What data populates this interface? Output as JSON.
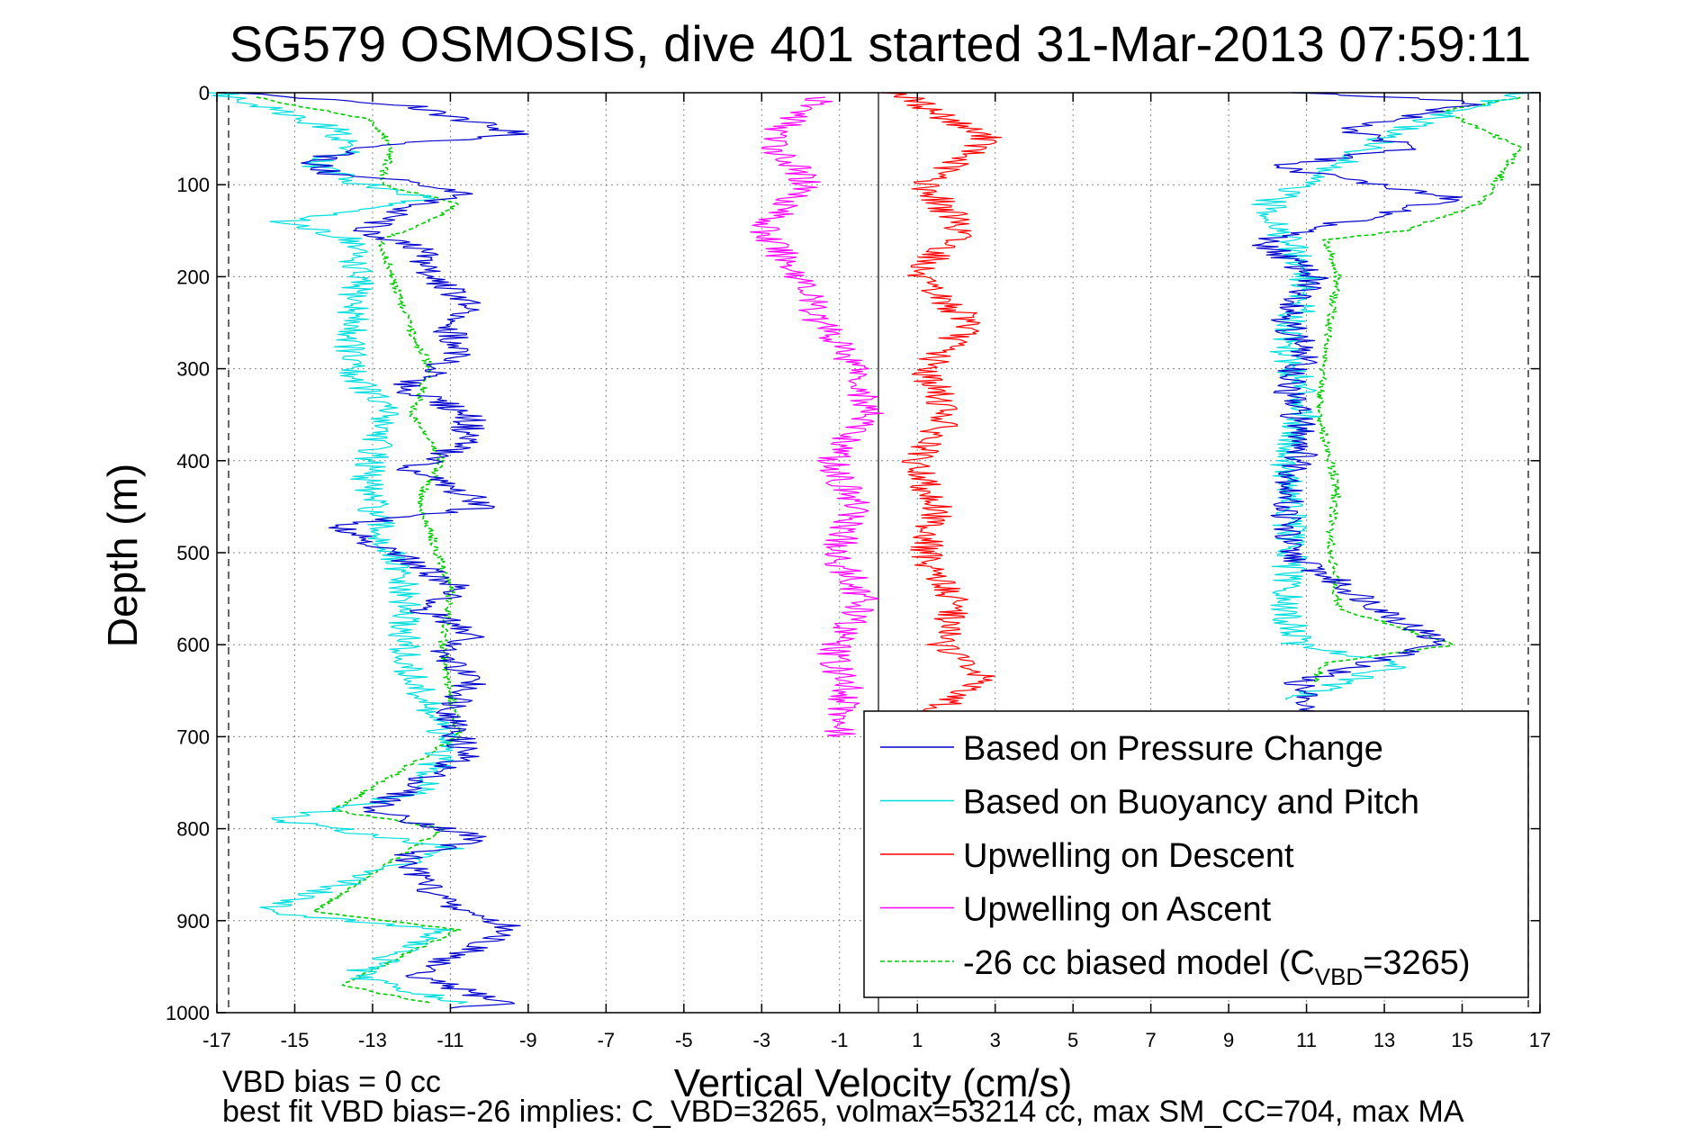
{
  "chart_data": {
    "type": "line",
    "title": "SG579 OSMOSIS, dive 401 started 31-Mar-2013 07:59:11",
    "xlabel": "Vertical Velocity (cm/s)",
    "ylabel": "Depth (m)",
    "xlim": [
      -17,
      17
    ],
    "ylim": [
      0,
      1000
    ],
    "y_reversed": true,
    "xticks": [
      "-17",
      "-15",
      "-13",
      "-11",
      "-9",
      "-7",
      "-5",
      "-3",
      "-1",
      "1",
      "3",
      "5",
      "7",
      "9",
      "11",
      "13",
      "15",
      "17"
    ],
    "yticks": [
      "0",
      "100",
      "200",
      "300",
      "400",
      "500",
      "600",
      "700",
      "800",
      "900",
      "1000"
    ],
    "grid": true,
    "legend_position": "bottom-right",
    "reference_lines": [
      {
        "x": -16.7,
        "style": "dashed"
      },
      {
        "x": 0,
        "style": "solid"
      },
      {
        "x": 16.7,
        "style": "dashed"
      }
    ],
    "series": [
      {
        "name": "Based on Pressure Change",
        "color": "#0000cc",
        "segments": [
          {
            "x": [
              -16.5,
              -12,
              -9.2,
              -13.5,
              -14.5,
              -14.2,
              -12.5,
              -10.5,
              -12.2,
              -13.2,
              -11.8,
              -11.5,
              -10.5,
              -11,
              -10.8,
              -11.3,
              -12.3,
              -10.5,
              -10.6,
              -12,
              -10,
              -13.8,
              -12.5,
              -10.7,
              -11.8,
              -10.3,
              -11.2,
              -10.5,
              -11,
              -10.6,
              -13,
              -10.2,
              -12.2,
              -11.2,
              -9.3,
              -11,
              -12,
              -9.5,
              -11
            ],
            "y": [
              0,
              15,
              45,
              60,
              75,
              88,
              95,
              110,
              125,
              150,
              170,
              200,
              230,
              260,
              280,
              300,
              320,
              350,
              380,
              410,
              450,
              470,
              500,
              540,
              560,
              590,
              610,
              640,
              680,
              720,
              780,
              810,
              830,
              880,
              910,
              940,
              960,
              990,
              995
            ]
          },
          {
            "x": [
              10.8,
              15.5,
              12,
              13.8,
              10.2,
              14.8,
              9.8,
              11.2,
              10.5,
              11,
              10.5,
              11,
              10.5,
              10.5,
              14.5,
              10.8,
              11,
              10.8
            ],
            "y": [
              0,
              10,
              40,
              60,
              80,
              115,
              160,
              200,
              250,
              280,
              320,
              380,
              440,
              500,
              600,
              640,
              660,
              675
            ]
          }
        ]
      },
      {
        "name": "Based on Buoyancy and Pitch",
        "color": "#00dddd",
        "segments": [
          {
            "x": [
              -17,
              -15.8,
              -14,
              -13.5,
              -14.5,
              -13.2,
              -11.5,
              -15.2,
              -13.5,
              -13.4,
              -13.6,
              -12.6,
              -13.2,
              -12.8,
              -12.2,
              -12.2,
              -11.2,
              -11.6,
              -15.5,
              -11,
              -15.8,
              -11.2,
              -13.5,
              -10.8
            ],
            "y": [
              0,
              15,
              40,
              60,
              80,
              100,
              115,
              140,
              160,
              200,
              300,
              350,
              420,
              480,
              540,
              620,
              700,
              760,
              790,
              820,
              890,
              910,
              960,
              990
            ]
          },
          {
            "x": [
              16.5,
              14,
              12.5,
              10,
              11,
              10.5,
              11,
              10.5,
              10.6,
              10.4,
              10.8,
              13.5,
              10.5
            ],
            "y": [
              0,
              30,
              60,
              120,
              200,
              280,
              340,
              400,
              500,
              560,
              600,
              620,
              660
            ]
          }
        ]
      },
      {
        "name": "Upwelling on Descent",
        "color": "#ff0000",
        "segments": [
          {
            "x": [
              0.5,
              2.8,
              1.2,
              2.2,
              0.9,
              2.4,
              1.2,
              1.8,
              0.9,
              1.5,
              1.2,
              2,
              1.6,
              2.8,
              1.4,
              2
            ],
            "y": [
              0,
              50,
              100,
              150,
              200,
              250,
              300,
              350,
              400,
              450,
              500,
              560,
              600,
              640,
              670,
              690
            ]
          }
        ]
      },
      {
        "name": "Upwelling on Ascent",
        "color": "#ff00ff",
        "segments": [
          {
            "x": [
              -1.5,
              -2.8,
              -1.8,
              -3,
              -2,
              -1.5,
              -0.5,
              -0.3,
              -1.2,
              -0.6,
              -1.1,
              -0.4,
              -1.2,
              -0.8,
              -1
            ],
            "y": [
              5,
              50,
              100,
              150,
              200,
              250,
              300,
              350,
              400,
              450,
              500,
              550,
              610,
              650,
              700
            ]
          }
        ]
      },
      {
        "name": "-26 cc biased model (C_VBD=3265)",
        "color": "#00cc00",
        "dashed": true,
        "segments": [
          {
            "x": [
              -16,
              -13,
              -12.5,
              -12.8,
              -10.8,
              -11.5,
              -12.8,
              -12.5,
              -12,
              -11.5,
              -12,
              -11.2,
              -11.8,
              -11.5,
              -11,
              -11.2,
              -10.8,
              -14,
              -11.2,
              -14.5,
              -10.8,
              -13.8,
              -11.5
            ],
            "y": [
              5,
              30,
              60,
              100,
              120,
              140,
              160,
              200,
              260,
              300,
              350,
              400,
              440,
              480,
              540,
              600,
              700,
              780,
              800,
              890,
              910,
              970,
              990
            ]
          },
          {
            "x": [
              16.5,
              14.5,
              16.5,
              15.5,
              13.5,
              11.5,
              11.8,
              11.5,
              11.3,
              11.8,
              11.6,
              11.8,
              14.8,
              11.5,
              11.2
            ],
            "y": [
              5,
              20,
              60,
              120,
              150,
              160,
              200,
              280,
              350,
              430,
              480,
              560,
              600,
              620,
              640
            ]
          }
        ]
      }
    ],
    "legend": {
      "entries": [
        {
          "label": "Based on Pressure Change",
          "color": "#0000cc",
          "dashed": false
        },
        {
          "label": "Based on Buoyancy and Pitch",
          "color": "#00dddd",
          "dashed": false
        },
        {
          "label": "Upwelling on Descent",
          "color": "#ff0000",
          "dashed": false
        },
        {
          "label": "Upwelling on Ascent",
          "color": "#ff00ff",
          "dashed": false
        },
        {
          "label_pre": "-26 cc biased model (C",
          "label_sub": "VBD",
          "label_post": "=3265)",
          "color": "#00cc00",
          "dashed": true
        }
      ]
    },
    "annotations": [
      "VBD bias = 0 cc",
      "best fit VBD bias=-26 implies: C_VBD=3265, volmax=53214 cc, max SM_CC=704, max MA"
    ]
  }
}
